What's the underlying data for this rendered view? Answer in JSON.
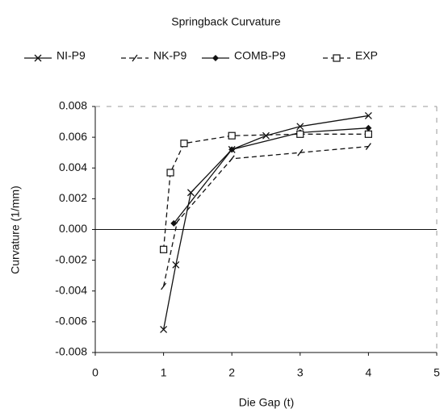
{
  "chart_data": {
    "type": "line",
    "title": "Springback Curvature",
    "x_label": "Die Gap (t)",
    "y_label": "Curvature (1/mm)",
    "xlim": [
      0,
      5
    ],
    "xticks": [
      0,
      1,
      2,
      3,
      4,
      5
    ],
    "ylim": [
      -0.008,
      0.008
    ],
    "yticks": [
      -0.008,
      -0.006,
      -0.004,
      -0.002,
      {
        "value": 0,
        "label": "0.000"
      },
      0.002,
      0.004,
      0.006,
      0.008
    ],
    "legend": "top",
    "series": [
      {
        "name": "NI-P9",
        "color": "#111111",
        "marker": "x",
        "dash": false,
        "x": [
          1,
          1.18,
          1.4,
          2,
          2.5,
          3,
          4
        ],
        "values": [
          -0.0065,
          -0.0023,
          0.0024,
          0.0052,
          0.0061,
          0.0067,
          0.0074
        ]
      },
      {
        "name": "NK-P9",
        "color": "#111111",
        "marker": "slash",
        "dash": true,
        "x": [
          1,
          1.2,
          2,
          3,
          4
        ],
        "values": [
          -0.0037,
          0.0005,
          0.0046,
          0.005,
          0.0054
        ]
      },
      {
        "name": "COMB-P9",
        "color": "#111111",
        "marker": "diamond",
        "dash": false,
        "x": [
          1.15,
          2,
          3,
          4
        ],
        "values": [
          0.0004,
          0.0052,
          0.0063,
          0.0066
        ]
      },
      {
        "name": "EXP",
        "color": "#111111",
        "marker": "square",
        "dash": true,
        "x": [
          1,
          1.1,
          1.3,
          2,
          3,
          4
        ],
        "values": [
          -0.0013,
          0.0037,
          0.0056,
          0.0061,
          0.0062,
          0.0062
        ]
      }
    ]
  }
}
